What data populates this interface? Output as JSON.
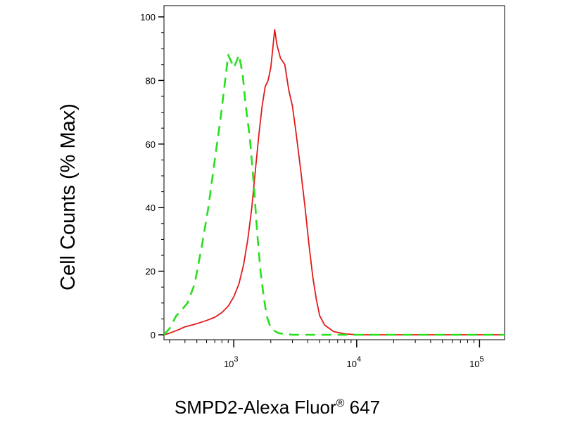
{
  "chart_data": {
    "type": "line",
    "xlabel": "SMPD2-Alexa Fluor",
    "xlabel_superscript": "®",
    "xlabel_suffix": " 647",
    "ylabel": "Cell Counts (% Max)",
    "x_scale": "log",
    "xlim": [
      270,
      160000
    ],
    "ylim": [
      0,
      100
    ],
    "y_ticks": [
      0,
      20,
      40,
      60,
      80,
      100
    ],
    "x_ticks": [
      {
        "value": 1000,
        "base": "10",
        "exp": "3"
      },
      {
        "value": 10000,
        "base": "10",
        "exp": "4"
      },
      {
        "value": 100000,
        "base": "10",
        "exp": "5"
      }
    ],
    "grid": false,
    "legend": "none",
    "series": [
      {
        "color": "#e01b1b",
        "style": "solid",
        "points": [
          [
            270,
            0
          ],
          [
            300,
            0.5
          ],
          [
            350,
            1.5
          ],
          [
            400,
            2.5
          ],
          [
            500,
            3.5
          ],
          [
            600,
            4.5
          ],
          [
            700,
            5.5
          ],
          [
            800,
            7
          ],
          [
            900,
            9
          ],
          [
            1000,
            12
          ],
          [
            1100,
            16
          ],
          [
            1200,
            22
          ],
          [
            1300,
            30
          ],
          [
            1400,
            40
          ],
          [
            1500,
            52
          ],
          [
            1600,
            63
          ],
          [
            1700,
            72
          ],
          [
            1800,
            78
          ],
          [
            1900,
            80
          ],
          [
            2000,
            84
          ],
          [
            2100,
            92
          ],
          [
            2150,
            96
          ],
          [
            2250,
            91
          ],
          [
            2400,
            87
          ],
          [
            2600,
            85
          ],
          [
            2800,
            77
          ],
          [
            3000,
            72
          ],
          [
            3200,
            64
          ],
          [
            3500,
            52
          ],
          [
            3800,
            40
          ],
          [
            4100,
            28
          ],
          [
            4400,
            18
          ],
          [
            4700,
            11
          ],
          [
            5000,
            6
          ],
          [
            5500,
            3
          ],
          [
            6500,
            1
          ],
          [
            8000,
            0.3
          ],
          [
            10000,
            0
          ],
          [
            160000,
            0
          ]
        ]
      },
      {
        "color": "#27e01e",
        "style": "dashed",
        "points": [
          [
            270,
            0
          ],
          [
            300,
            2
          ],
          [
            340,
            6
          ],
          [
            380,
            8
          ],
          [
            420,
            10
          ],
          [
            480,
            16
          ],
          [
            550,
            28
          ],
          [
            620,
            40
          ],
          [
            700,
            55
          ],
          [
            780,
            68
          ],
          [
            850,
            80
          ],
          [
            900,
            88
          ],
          [
            950,
            86
          ],
          [
            1000,
            84
          ],
          [
            1050,
            86
          ],
          [
            1100,
            88
          ],
          [
            1180,
            82
          ],
          [
            1250,
            72
          ],
          [
            1350,
            62
          ],
          [
            1450,
            48
          ],
          [
            1550,
            32
          ],
          [
            1650,
            20
          ],
          [
            1750,
            12
          ],
          [
            1850,
            6
          ],
          [
            2000,
            2
          ],
          [
            2300,
            0.5
          ],
          [
            3000,
            0
          ],
          [
            160000,
            0
          ]
        ]
      }
    ]
  }
}
